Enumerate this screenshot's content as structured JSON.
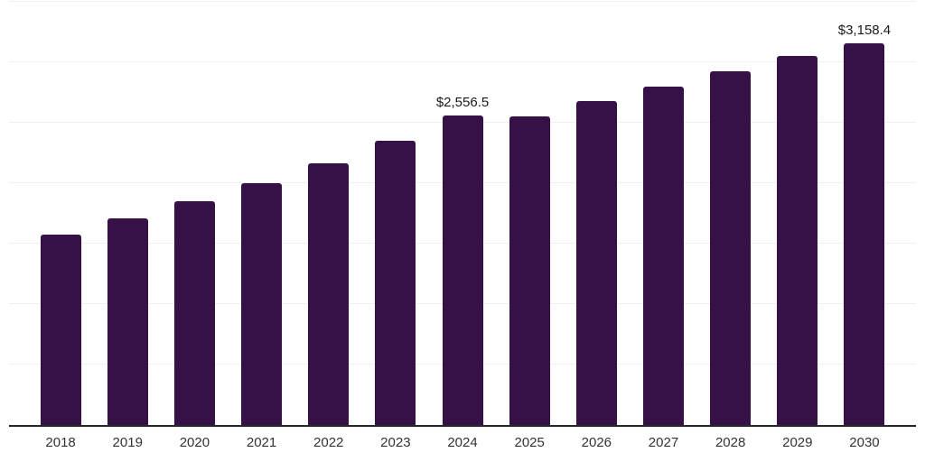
{
  "chart_data": {
    "type": "bar",
    "title": "",
    "xlabel": "",
    "ylabel": "",
    "categories": [
      "2018",
      "2019",
      "2020",
      "2021",
      "2022",
      "2023",
      "2024",
      "2025",
      "2026",
      "2027",
      "2028",
      "2029",
      "2030"
    ],
    "values": [
      1574,
      1710,
      1849,
      1998,
      2166,
      2350,
      2556.5,
      2555,
      2677,
      2801,
      2925,
      3049,
      3158.4
    ],
    "data_labels": [
      {
        "index": 6,
        "text": "$2,556.5"
      },
      {
        "index": 12,
        "text": "$3,158.4"
      }
    ],
    "ylim": [
      0,
      3500
    ],
    "grid": {
      "visible": true,
      "interval": 500
    },
    "legend_position": "none",
    "colors": {
      "bar": "#351147",
      "gridline": "#f0f0f0",
      "axis_line": "#262626",
      "value_label_text": "#1a1a1a",
      "tick_label_text": "#333333",
      "background": "#ffffff"
    }
  }
}
